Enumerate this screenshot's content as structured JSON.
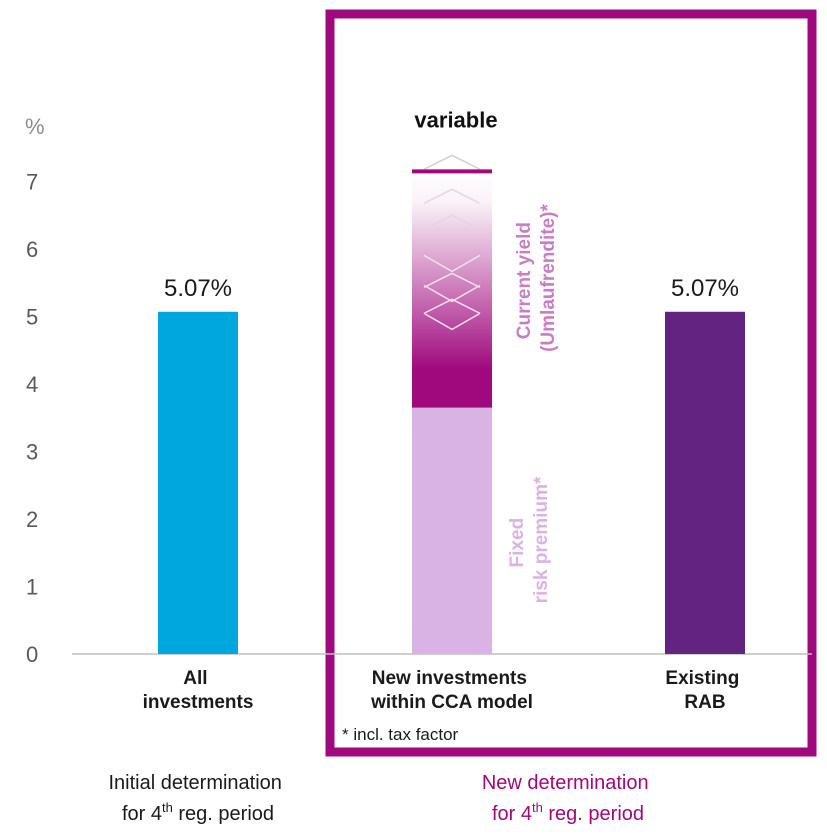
{
  "chart_data": {
    "type": "bar",
    "unit_label": "%",
    "ylim": [
      0,
      7.7
    ],
    "yticks": [
      "0",
      "1",
      "2",
      "3",
      "4",
      "5",
      "6",
      "7"
    ],
    "categories": [
      {
        "lines": [
          "All",
          "investments"
        ],
        "value": 5.07,
        "value_label": "5.07%",
        "color": "#00a6de"
      },
      {
        "lines": [
          "New investments",
          "within CCA model"
        ],
        "fixed": 3.65,
        "current_yield": 3.5,
        "top_label": "variable",
        "color_fixed": "#d9b3e3",
        "color_variable": "#a0087e"
      },
      {
        "lines": [
          "Existing",
          "RAB"
        ],
        "value": 5.07,
        "value_label": "5.07%",
        "color": "#622381"
      }
    ],
    "segment_labels": {
      "current_yield": [
        "Current yield",
        "(Umlaufrendite)*"
      ],
      "fixed": [
        "Fixed",
        "risk premium*"
      ]
    },
    "footnote": "* incl. tax factor",
    "group_labels": {
      "initial": {
        "line1": "Initial determination",
        "line2_pre": "for 4",
        "line2_sup": "th",
        "line2_post": " reg. period",
        "color": "#1a1a1a"
      },
      "new": {
        "line1": "New determination",
        "line2_pre": "for 4",
        "line2_sup": "th",
        "line2_post": " reg. period",
        "color": "#a0087e"
      }
    },
    "highlight_color": "#a0087e",
    "grid": false
  }
}
